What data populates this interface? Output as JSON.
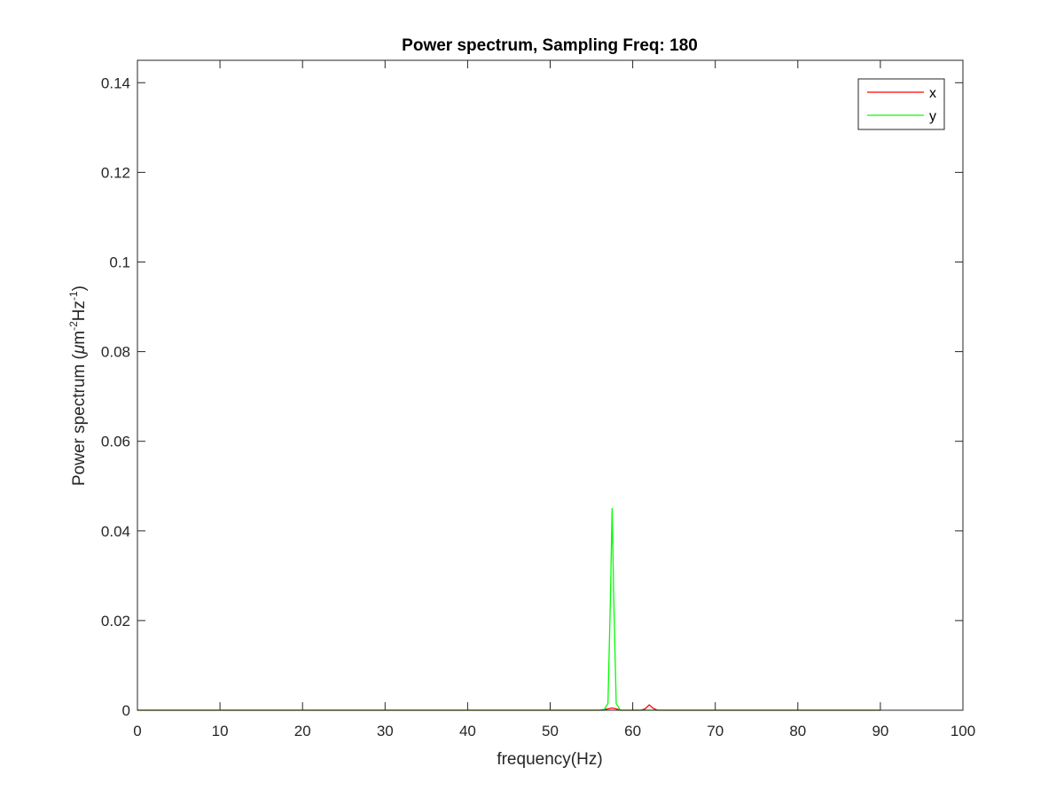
{
  "chart_data": {
    "type": "line",
    "title": "Power spectrum, Sampling Freq: 180",
    "xlabel": "frequency(Hz)",
    "ylabel": {
      "prefix": "Power spectrum (",
      "mu": "μ",
      "m": "m",
      "sup1": "-2",
      "hz": "Hz",
      "sup2": "-1",
      "suffix": ")"
    },
    "xlim": [
      0,
      100
    ],
    "ylim": [
      0,
      0.145
    ],
    "xticks": [
      0,
      10,
      20,
      30,
      40,
      50,
      60,
      70,
      80,
      90,
      100
    ],
    "xtick_labels": [
      "0",
      "10",
      "20",
      "30",
      "40",
      "50",
      "60",
      "70",
      "80",
      "90",
      "100"
    ],
    "yticks": [
      0,
      0.02,
      0.04,
      0.06,
      0.08,
      0.1,
      0.12,
      0.14
    ],
    "ytick_labels": [
      "0",
      "0.02",
      "0.04",
      "0.06",
      "0.08",
      "0.1",
      "0.12",
      "0.14"
    ],
    "grid": false,
    "legend_position": "top-right",
    "series": [
      {
        "name": "x",
        "color": "#ff0000",
        "x": [
          0,
          56,
          57,
          57.5,
          58,
          58.5,
          61,
          61.5,
          62,
          62.5,
          63,
          90
        ],
        "y": [
          0,
          0,
          0.0003,
          0.0005,
          0.0003,
          0,
          0,
          0.0003,
          0.0012,
          0.0004,
          0,
          0
        ]
      },
      {
        "name": "y",
        "color": "#00ff00",
        "x": [
          0,
          56.5,
          57,
          57.3,
          57.5,
          57.7,
          58,
          58.5,
          64,
          66,
          90
        ],
        "y": [
          0,
          0,
          0.0015,
          0.025,
          0.045,
          0.025,
          0.0015,
          0,
          0,
          0,
          0
        ]
      }
    ]
  }
}
